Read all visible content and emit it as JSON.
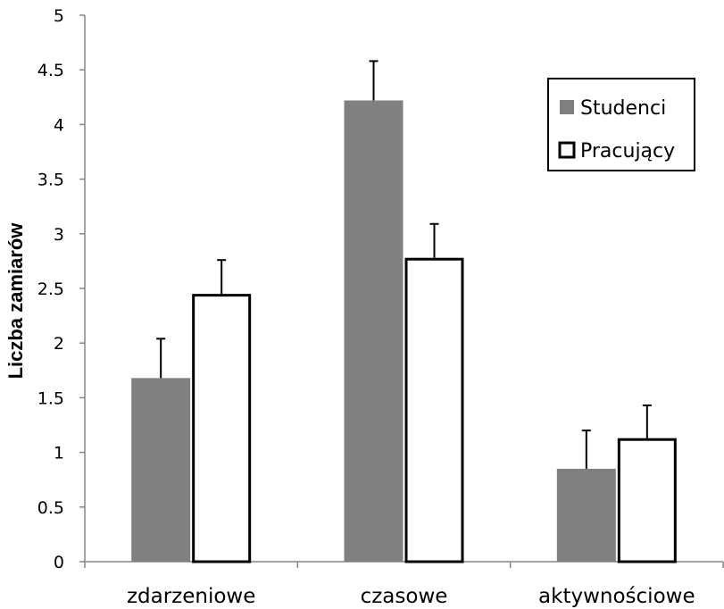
{
  "chart_data": {
    "type": "bar",
    "title": "",
    "xlabel": "",
    "ylabel": "Liczba zamiarów",
    "ylim": [
      0,
      5
    ],
    "yticks": [
      "0",
      "0.5",
      "1",
      "1.5",
      "2",
      "2.5",
      "3",
      "3.5",
      "4",
      "4.5",
      "5"
    ],
    "categories": [
      "zdarzeniowe",
      "czasowe",
      "aktywnościowe"
    ],
    "series": [
      {
        "name": "Studenci",
        "values": [
          1.68,
          4.22,
          0.85
        ],
        "errors": [
          0.36,
          0.36,
          0.35
        ],
        "color": "#808080",
        "fill": "solid"
      },
      {
        "name": "Pracujący",
        "values": [
          2.45,
          2.78,
          1.13
        ],
        "errors": [
          0.31,
          0.31,
          0.3
        ],
        "color": "#000000",
        "fill": "outline"
      }
    ],
    "legend_position": "top-right",
    "grid": false
  }
}
